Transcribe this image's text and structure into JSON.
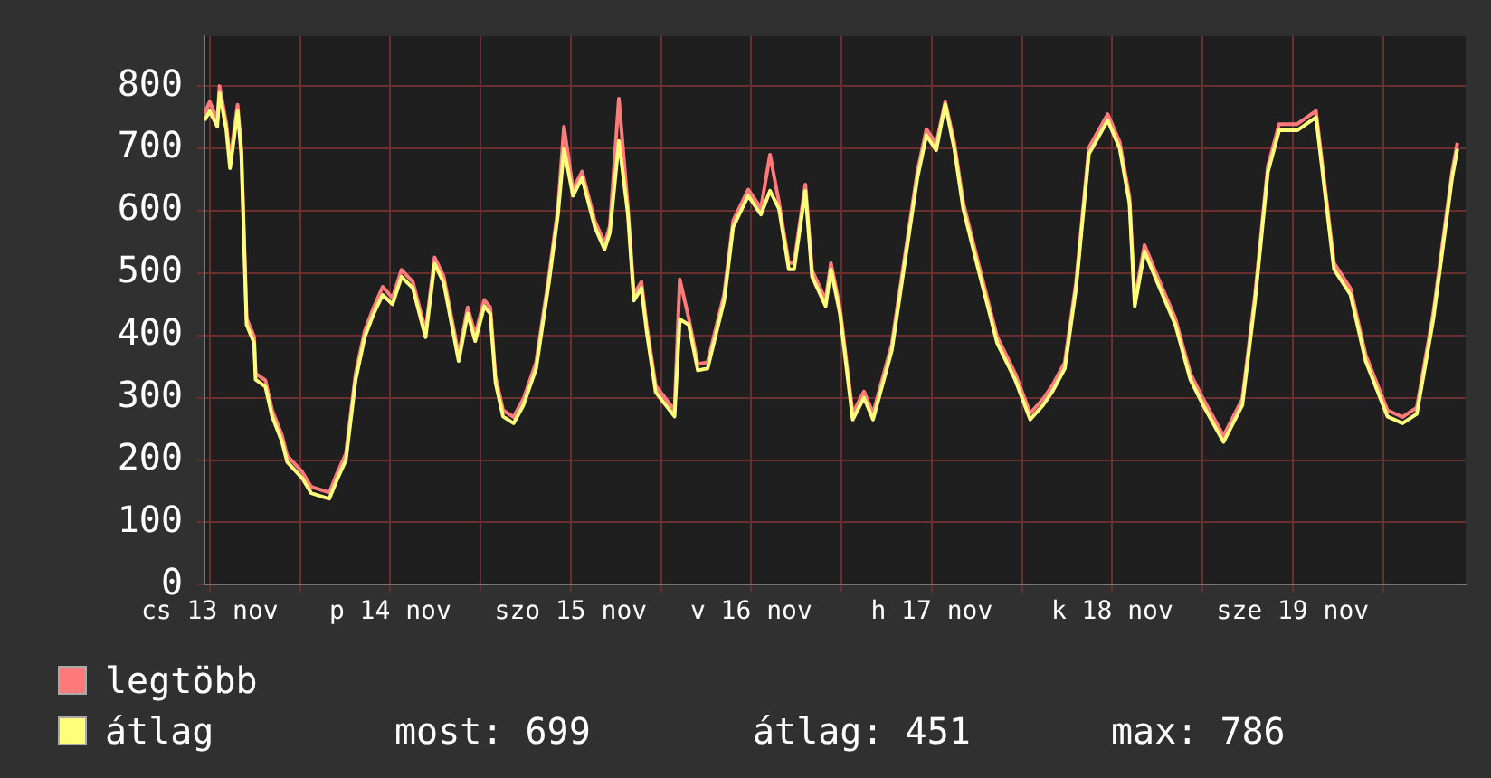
{
  "chart_data": {
    "type": "line",
    "legend": "bottom",
    "grid": true,
    "marker": "none",
    "line_style": "solid",
    "x": [
      "--11-12T23:18",
      "--11-13T00:00",
      "--11-13T01:00",
      "--11-13T01:18",
      "--11-13T02:12",
      "--11-13T02:42",
      "--11-13T03:42",
      "--11-13T04:12",
      "--11-13T04:42",
      "--11-13T04:54",
      "--11-13T05:54",
      "--11-13T06:06",
      "--11-13T07:24",
      "--11-13T08:18",
      "--11-13T09:36",
      "--11-13T10:18",
      "--11-13T12:18",
      "--11-13T13:30",
      "--11-13T15:54",
      "--11-13T16:54",
      "--11-13T18:06",
      "--11-13T19:24",
      "--11-13T20:36",
      "--11-13T21:48",
      "--11-13T23:00",
      "--11-14T00:18",
      "--11-14T01:30",
      "--11-14T03:00",
      "--11-14T04:42",
      "--11-14T05:54",
      "--11-14T07:06",
      "--11-14T09:06",
      "--11-14T10:18",
      "--11-14T11:18",
      "--11-14T12:30",
      "--11-14T13:18",
      "--11-14T14:00",
      "--11-14T15:00",
      "--11-14T16:24",
      "--11-14T17:42",
      "--11-14T19:24",
      "--11-14T21:06",
      "--11-14T22:18",
      "--11-14T23:06",
      "--11-15T00:18",
      "--11-15T01:30",
      "--11-15T03:12",
      "--11-15T04:30",
      "--11-15T05:12",
      "--11-15T06:24",
      "--11-15T07:36",
      "--11-15T08:24",
      "--11-15T09:24",
      "--11-15T10:06",
      "--11-15T11:18",
      "--11-15T13:48",
      "--11-15T14:30",
      "--11-15T15:42",
      "--11-15T16:54",
      "--11-15T18:12",
      "--11-15T20:24",
      "--11-15T21:36",
      "--11-15T23:36",
      "--11-16T01:18",
      "--11-16T02:30",
      "--11-16T03:42",
      "--11-16T05:00",
      "--11-16T05:42",
      "--11-16T07:12",
      "--11-16T08:06",
      "--11-16T09:54",
      "--11-16T10:36",
      "--11-16T11:48",
      "--11-16T13:30",
      "--11-16T15:00",
      "--11-16T16:12",
      "--11-16T18:42",
      "--11-16T20:24",
      "--11-16T22:06",
      "--11-16T23:18",
      "--11-17T00:36",
      "--11-17T01:48",
      "--11-17T03:00",
      "--11-17T04:12",
      "--11-17T06:12",
      "--11-17T08:42",
      "--11-17T11:06",
      "--11-17T13:06",
      "--11-17T14:48",
      "--11-17T16:00",
      "--11-17T17:42",
      "--11-17T19:12",
      "--11-17T20:54",
      "--11-17T23:24",
      "--11-18T01:00",
      "--11-18T02:18",
      "--11-18T03:00",
      "--11-18T04:18",
      "--11-18T06:00",
      "--11-18T08:24",
      "--11-18T10:24",
      "--11-18T12:06",
      "--11-18T14:48",
      "--11-18T17:18",
      "--11-18T19:00",
      "--11-18T20:42",
      "--11-18T22:12",
      "--11-19T00:36",
      "--11-19T03:06",
      "--11-19T05:30",
      "--11-19T07:42",
      "--11-19T09:42",
      "--11-19T12:36",
      "--11-19T14:36",
      "--11-19T16:30",
      "--11-19T18:42",
      "--11-19T21:12",
      "--11-19T21:54"
    ],
    "series": [
      {
        "name": "legtöbb",
        "color": "#ff7b7b",
        "values": [
          755,
          775,
          745,
          800,
          740,
          680,
          770,
          700,
          505,
          427,
          398,
          339,
          328,
          280,
          240,
          207,
          181,
          157,
          148,
          178,
          210,
          339,
          407,
          445,
          478,
          460,
          505,
          486,
          407,
          525,
          495,
          369,
          445,
          401,
          457,
          445,
          334,
          280,
          269,
          298,
          357,
          495,
          604,
          735,
          634,
          663,
          584,
          548,
          575,
          780,
          605,
          466,
          486,
          416,
          319,
          280,
          490,
          427,
          354,
          357,
          466,
          584,
          634,
          604,
          690,
          613,
          516,
          516,
          642,
          504,
          457,
          516,
          445,
          275,
          310,
          275,
          386,
          525,
          663,
          731,
          707,
          775,
          710,
          613,
          516,
          398,
          339,
          275,
          298,
          319,
          357,
          486,
          701,
          755,
          710,
          622,
          457,
          545,
          495,
          427,
          339,
          298,
          239,
          298,
          466,
          672,
          739,
          739,
          760,
          516,
          475,
          369,
          280,
          269,
          284,
          436,
          663,
          709
        ]
      },
      {
        "name": "átlag",
        "color": "#ffff7b",
        "values": [
          745,
          760,
          735,
          789,
          730,
          668,
          760,
          691,
          495,
          417,
          388,
          329,
          318,
          270,
          230,
          197,
          171,
          147,
          138,
          168,
          200,
          329,
          397,
          435,
          465,
          450,
          494,
          476,
          397,
          515,
          485,
          359,
          435,
          391,
          447,
          435,
          324,
          270,
          259,
          288,
          347,
          485,
          594,
          700,
          624,
          653,
          574,
          538,
          565,
          712,
          595,
          456,
          476,
          406,
          309,
          270,
          426,
          417,
          344,
          347,
          456,
          574,
          624,
          594,
          632,
          603,
          506,
          506,
          632,
          494,
          447,
          506,
          435,
          265,
          300,
          265,
          376,
          515,
          653,
          721,
          697,
          771,
          700,
          603,
          506,
          388,
          329,
          265,
          288,
          309,
          347,
          476,
          691,
          745,
          700,
          612,
          447,
          535,
          485,
          417,
          329,
          288,
          229,
          288,
          456,
          662,
          729,
          729,
          750,
          506,
          465,
          359,
          270,
          259,
          274,
          426,
          653,
          699
        ]
      }
    ],
    "xlim": [
      "--11-12T23:18",
      "--11-19T23:00"
    ],
    "xticks": [
      {
        "value": "--11-13",
        "label": "cs 13 nov"
      },
      {
        "value": "--11-13T12:00",
        "label": null
      },
      {
        "value": "--11-14",
        "label": "p 14 nov"
      },
      {
        "value": "--11-14T12:00",
        "label": null
      },
      {
        "value": "--11-15",
        "label": "szo 15 nov"
      },
      {
        "value": "--11-15T12:00",
        "label": null
      },
      {
        "value": "--11-16",
        "label": "v 16 nov"
      },
      {
        "value": "--11-16T12:00",
        "label": null
      },
      {
        "value": "--11-17",
        "label": "h 17 nov"
      },
      {
        "value": "--11-17T12:00",
        "label": null
      },
      {
        "value": "--11-18",
        "label": "k 18 nov"
      },
      {
        "value": "--11-18T12:00",
        "label": null
      },
      {
        "value": "--11-19",
        "label": "sze 19 nov"
      },
      {
        "value": "--11-19T12:00",
        "label": null
      }
    ],
    "ylim": [
      0,
      880
    ],
    "yticks": [
      0,
      100,
      200,
      300,
      400,
      500,
      600,
      700,
      800
    ],
    "annotations": [
      "most: 699",
      "átlag: 451",
      "max: 786"
    ]
  }
}
